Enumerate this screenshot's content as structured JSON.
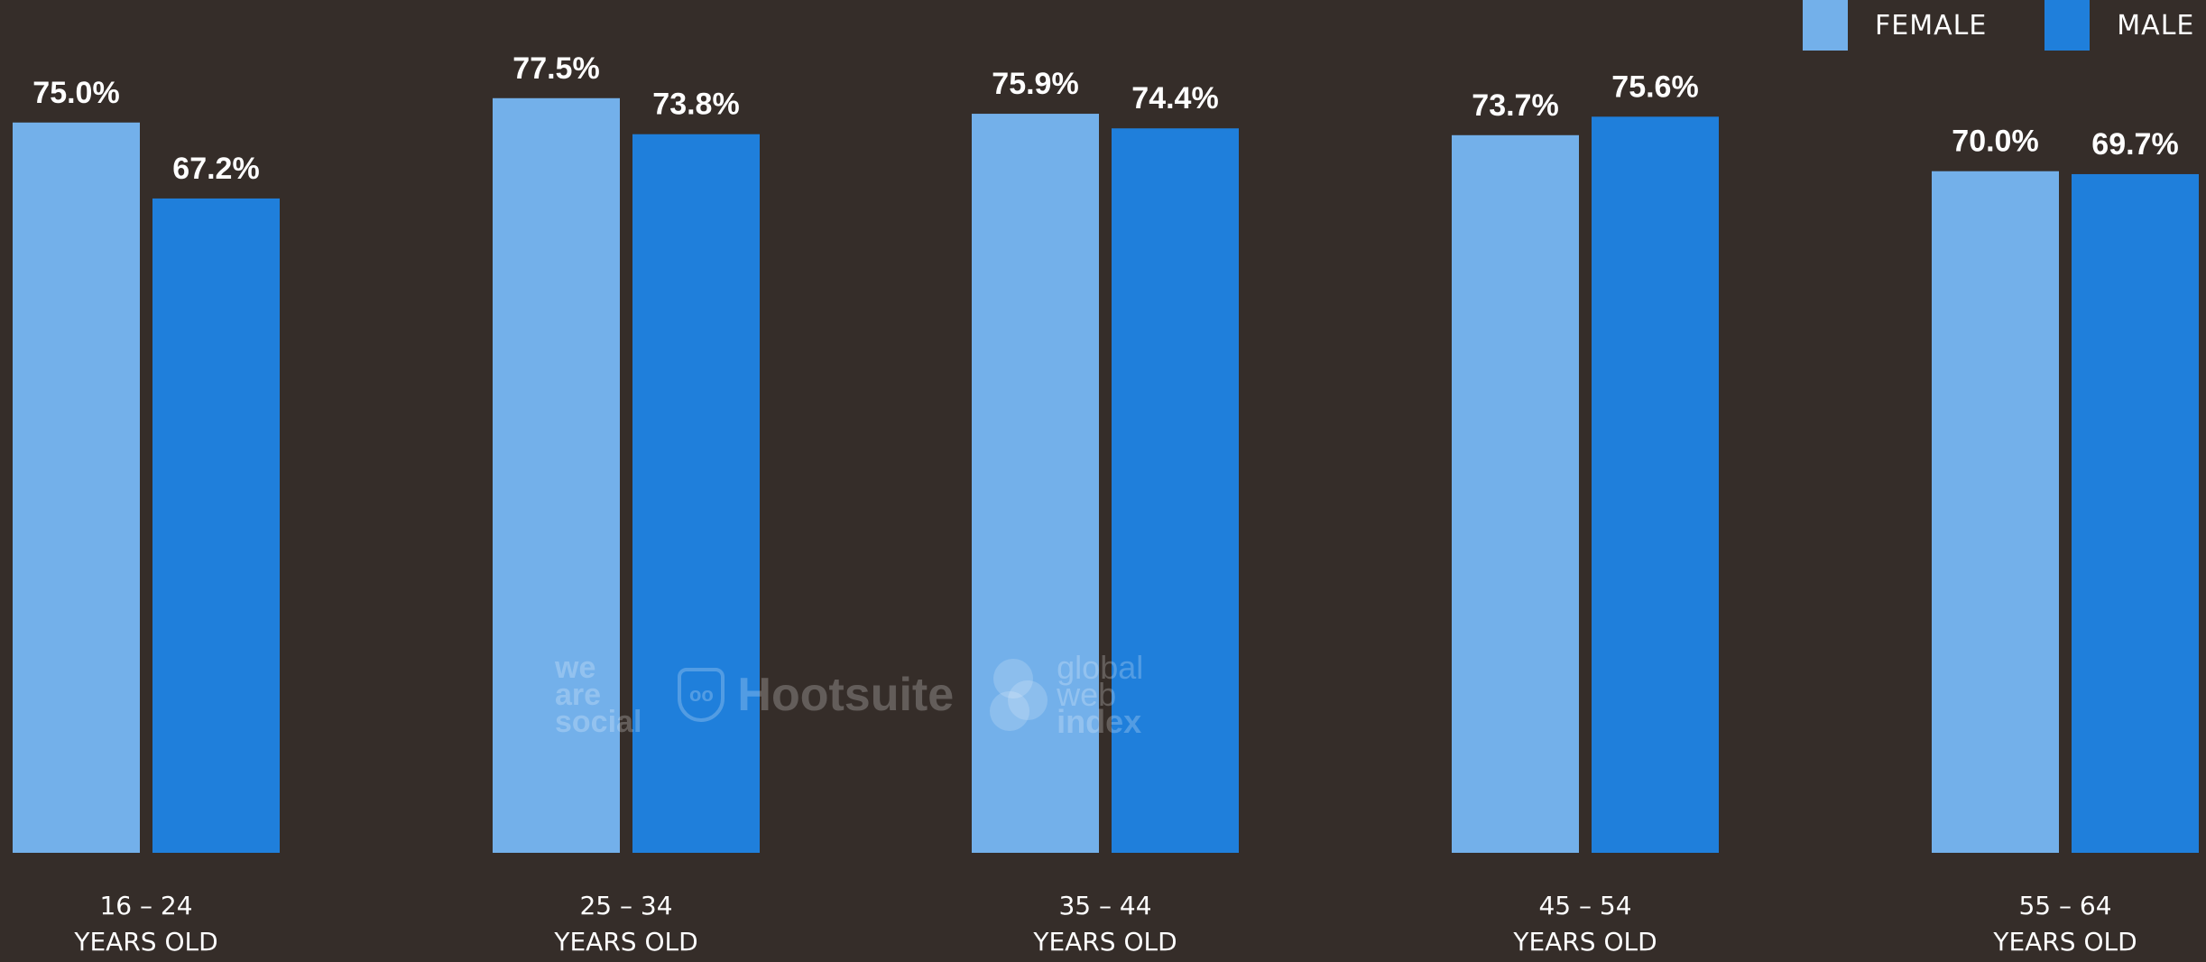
{
  "legend": {
    "female_label": "FEMALE",
    "male_label": "MALE"
  },
  "colors": {
    "background": "#352d29",
    "female": "#73b0ea",
    "male": "#1f7fdb",
    "text": "#ffffff"
  },
  "watermark": {
    "was": [
      "we",
      "are",
      "social"
    ],
    "hootsuite": "Hootsuite",
    "gwi": [
      "global",
      "web",
      "index"
    ]
  },
  "chart_data": {
    "type": "bar",
    "categories": [
      [
        "16 – 24",
        "YEARS OLD"
      ],
      [
        "25 – 34",
        "YEARS OLD"
      ],
      [
        "35 – 44",
        "YEARS OLD"
      ],
      [
        "45 – 54",
        "YEARS OLD"
      ],
      [
        "55 – 64",
        "YEARS OLD"
      ]
    ],
    "series": [
      {
        "name": "FEMALE",
        "values": [
          75.0,
          77.5,
          75.9,
          73.7,
          70.0
        ],
        "labels": [
          "75.0%",
          "77.5%",
          "75.9%",
          "73.7%",
          "70.0%"
        ]
      },
      {
        "name": "MALE",
        "values": [
          67.2,
          73.8,
          74.4,
          75.6,
          69.7
        ],
        "labels": [
          "67.2%",
          "73.8%",
          "74.4%",
          "75.6%",
          "69.7%"
        ]
      }
    ],
    "ylim": [
      0,
      78.5
    ],
    "grid": false,
    "legend_position": "top-right"
  }
}
